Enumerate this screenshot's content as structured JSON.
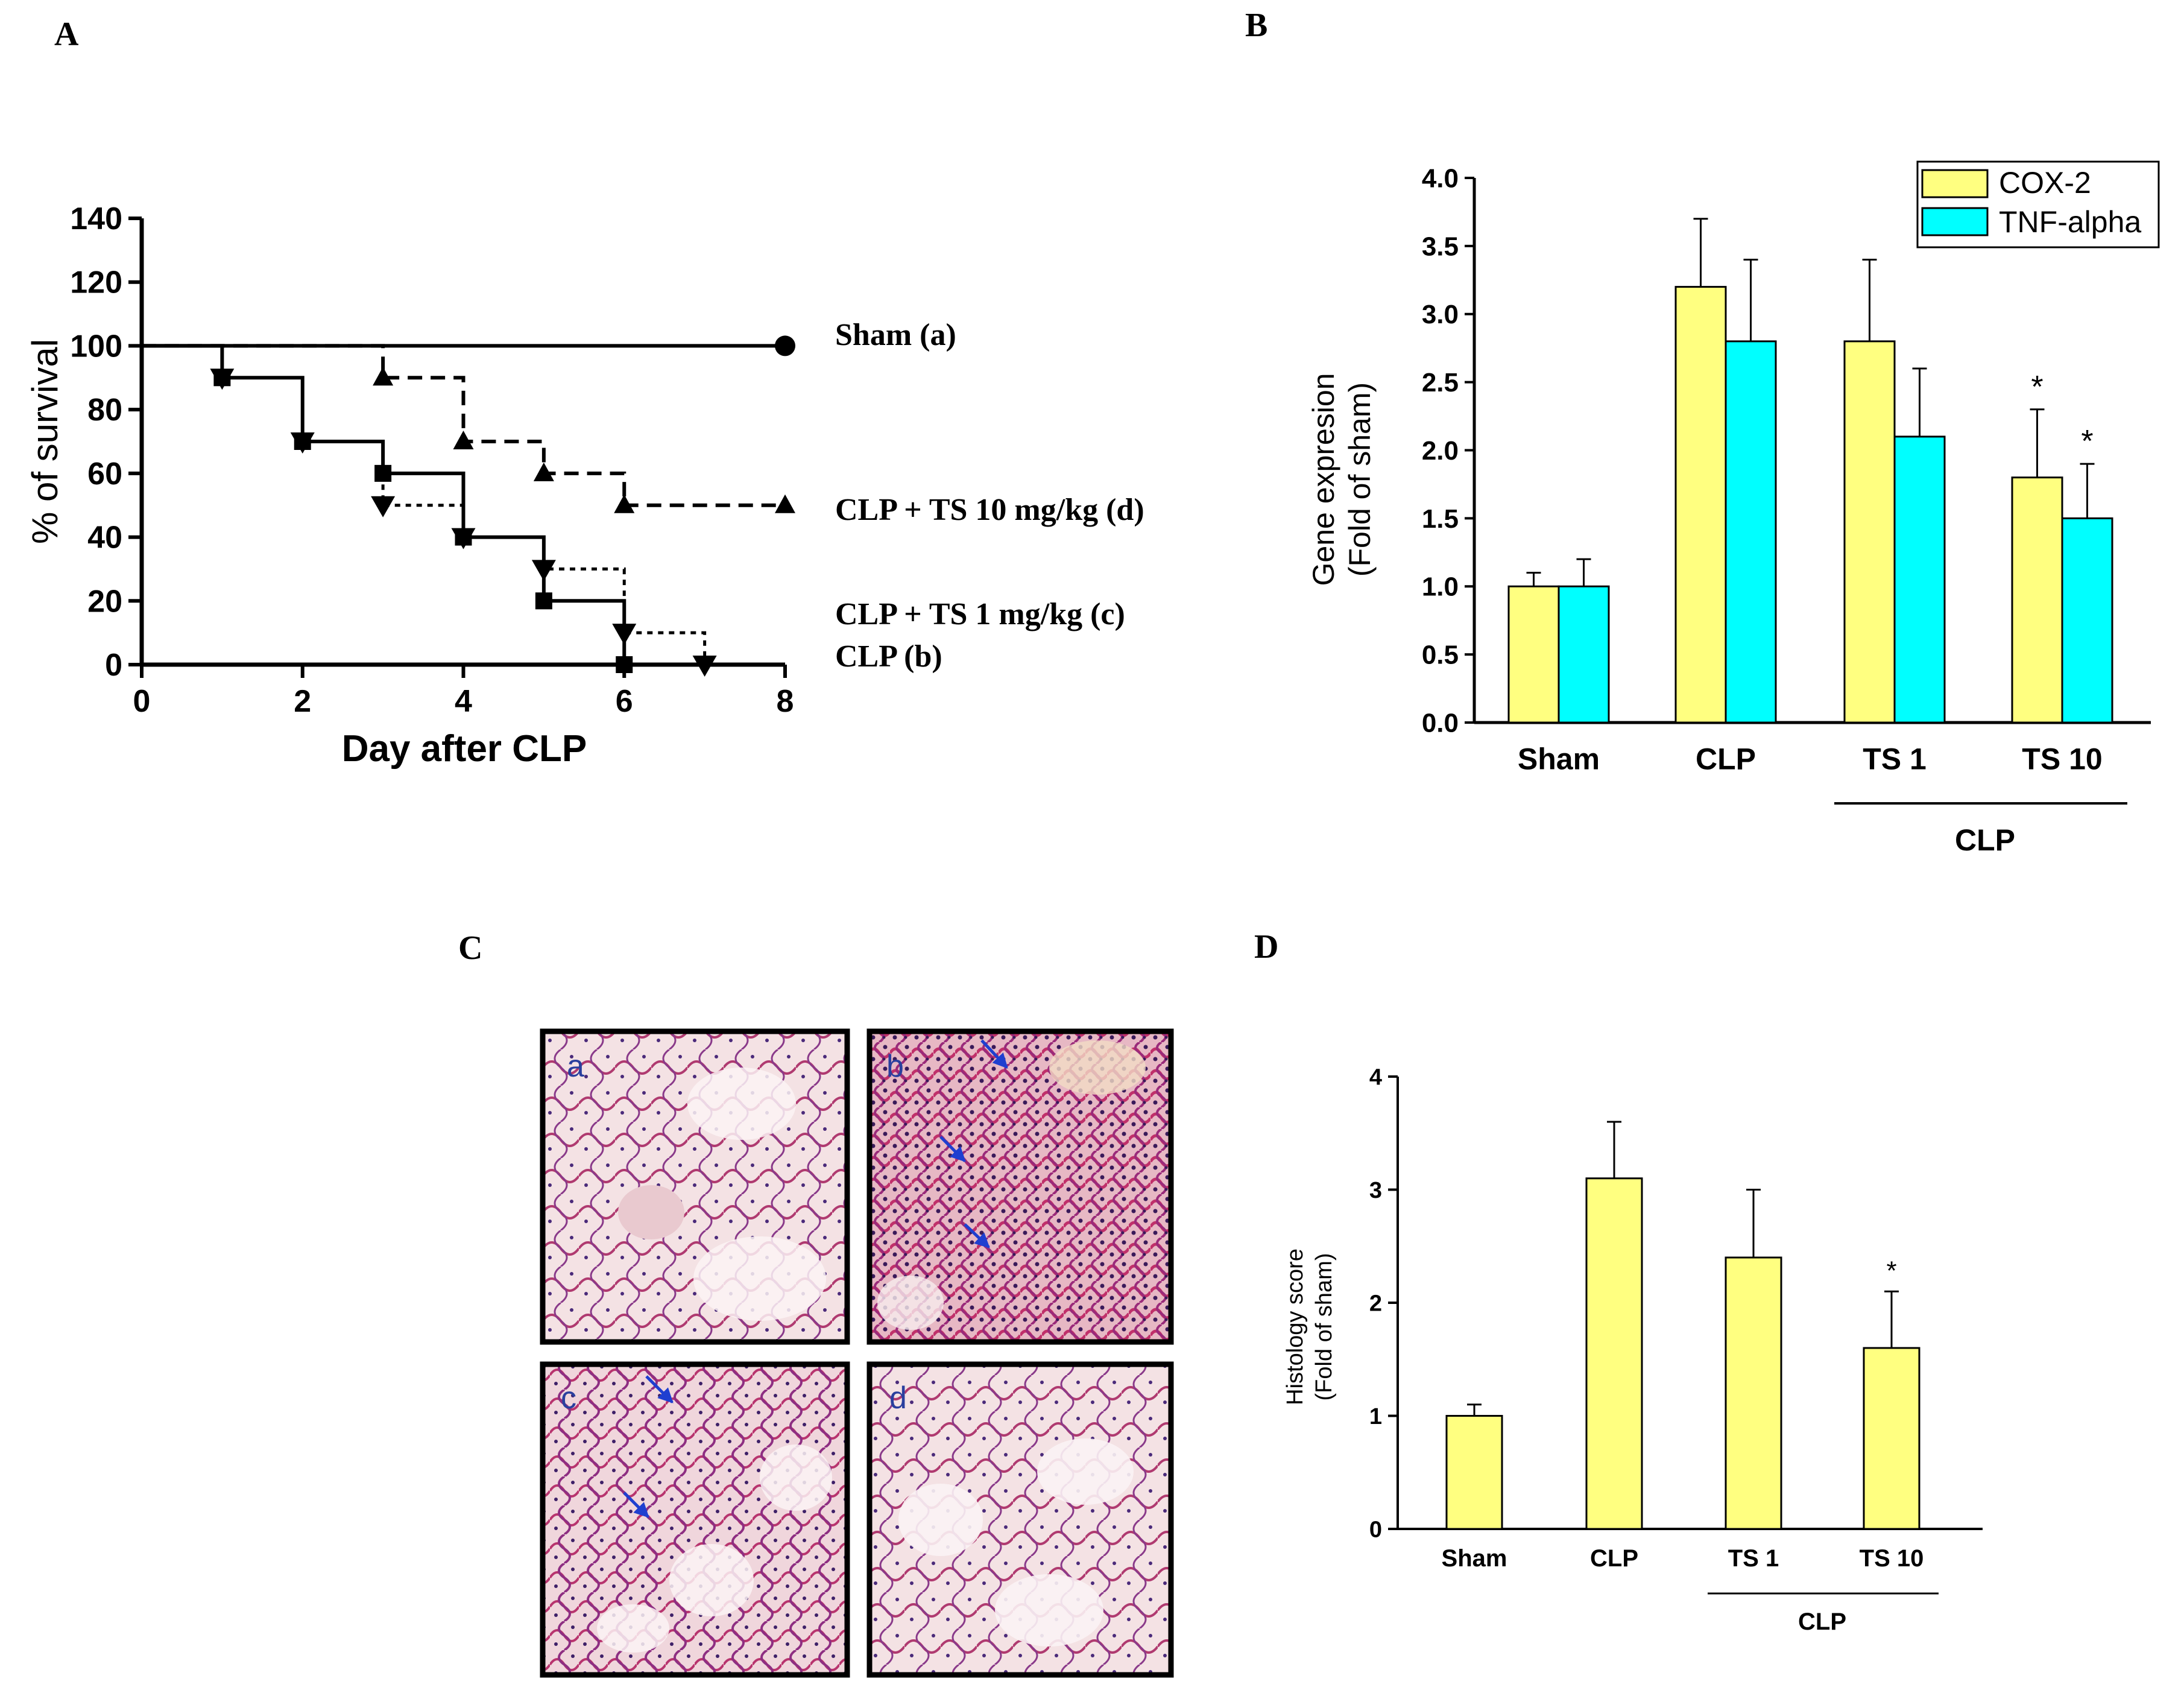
{
  "panel_labels": {
    "A": "A",
    "B": "B",
    "C": "C",
    "D": "D"
  },
  "colors": {
    "cox2": "#ffff80",
    "tnf": "#00ffff",
    "line": "#000000",
    "arrow": "#1f3fd0"
  },
  "chart_data": [
    {
      "panel": "A",
      "type": "line",
      "subtype": "kaplan-meier",
      "xlabel": "Day after CLP",
      "ylabel": "% of survival",
      "xlim": [
        0,
        8
      ],
      "ylim": [
        0,
        140
      ],
      "xticks": [
        0,
        2,
        4,
        6,
        8
      ],
      "yticks": [
        0,
        20,
        40,
        60,
        80,
        100,
        120,
        140
      ],
      "series": [
        {
          "name": "Sham (a)",
          "label": "Sham (a)",
          "style": "solid",
          "marker": "circle",
          "x": [
            0,
            8
          ],
          "y": [
            100,
            100
          ],
          "marker_points": [
            [
              8,
              100
            ]
          ]
        },
        {
          "name": "CLP + TS 10 mg/kg (d)",
          "label": "CLP + TS 10 mg/kg  (d)",
          "style": "dashed",
          "marker": "triangle-up",
          "x": [
            0,
            3,
            4,
            5,
            6,
            8
          ],
          "y": [
            100,
            90,
            70,
            60,
            50,
            50
          ],
          "marker_points": [
            [
              3,
              90
            ],
            [
              4,
              70
            ],
            [
              5,
              60
            ],
            [
              6,
              50
            ],
            [
              8,
              50
            ]
          ]
        },
        {
          "name": "CLP + TS 1 mg/kg (c)",
          "label": "CLP + TS 1 mg/kg (c)",
          "style": "dotted",
          "marker": "triangle-down",
          "x": [
            0,
            1,
            2,
            3,
            4,
            5,
            6,
            7
          ],
          "y": [
            100,
            90,
            70,
            50,
            40,
            30,
            10,
            0
          ],
          "marker_points": [
            [
              1,
              90
            ],
            [
              2,
              70
            ],
            [
              3,
              50
            ],
            [
              4,
              40
            ],
            [
              5,
              30
            ],
            [
              6,
              10
            ],
            [
              7,
              0
            ]
          ]
        },
        {
          "name": "CLP (b)",
          "label": "CLP (b)",
          "style": "solid",
          "marker": "square",
          "x": [
            0,
            1,
            2,
            3,
            4,
            5,
            6
          ],
          "y": [
            100,
            90,
            70,
            60,
            40,
            20,
            0
          ],
          "marker_points": [
            [
              1,
              90
            ],
            [
              2,
              70
            ],
            [
              3,
              60
            ],
            [
              4,
              40
            ],
            [
              5,
              20
            ],
            [
              6,
              0
            ]
          ]
        }
      ]
    },
    {
      "panel": "B",
      "type": "bar",
      "ylabel_lines": [
        "Gene expresion",
        "(Fold of  sham)"
      ],
      "categories": [
        "Sham",
        "CLP",
        "TS 1",
        "TS 10"
      ],
      "group_label": "CLP",
      "ylim": [
        0,
        4
      ],
      "yticks": [
        "0.0",
        "0.5",
        "1.0",
        "1.5",
        "2.0",
        "2.5",
        "3.0",
        "3.5",
        "4.0"
      ],
      "series": [
        {
          "name": "COX-2",
          "values": [
            1.0,
            3.2,
            2.8,
            1.8
          ],
          "errors": [
            0.1,
            0.5,
            0.6,
            0.5
          ],
          "significance": [
            "",
            "",
            "",
            "*"
          ]
        },
        {
          "name": "TNF-alpha",
          "values": [
            1.0,
            2.8,
            2.1,
            1.5
          ],
          "errors": [
            0.2,
            0.6,
            0.5,
            0.4
          ],
          "significance": [
            "",
            "",
            "",
            "*"
          ]
        }
      ],
      "legend_position": "top-right"
    },
    {
      "panel": "D",
      "type": "bar",
      "ylabel_lines": [
        "Histology score",
        "(Fold of sham)"
      ],
      "categories": [
        "Sham",
        "CLP",
        "TS 1",
        "TS 10"
      ],
      "group_label": "CLP",
      "ylim": [
        0,
        4
      ],
      "yticks": [
        "0",
        "1",
        "2",
        "3",
        "4"
      ],
      "series": [
        {
          "name": "Histology score",
          "values": [
            1.0,
            3.1,
            2.4,
            1.6
          ],
          "errors": [
            0.1,
            0.5,
            0.6,
            0.5
          ],
          "significance": [
            "",
            "",
            "",
            "*"
          ]
        }
      ]
    }
  ],
  "histology_panel": {
    "images": [
      {
        "label": "a",
        "arrows": 0
      },
      {
        "label": "b",
        "arrows": 3
      },
      {
        "label": "c",
        "arrows": 2
      },
      {
        "label": "d",
        "arrows": 0
      }
    ]
  }
}
